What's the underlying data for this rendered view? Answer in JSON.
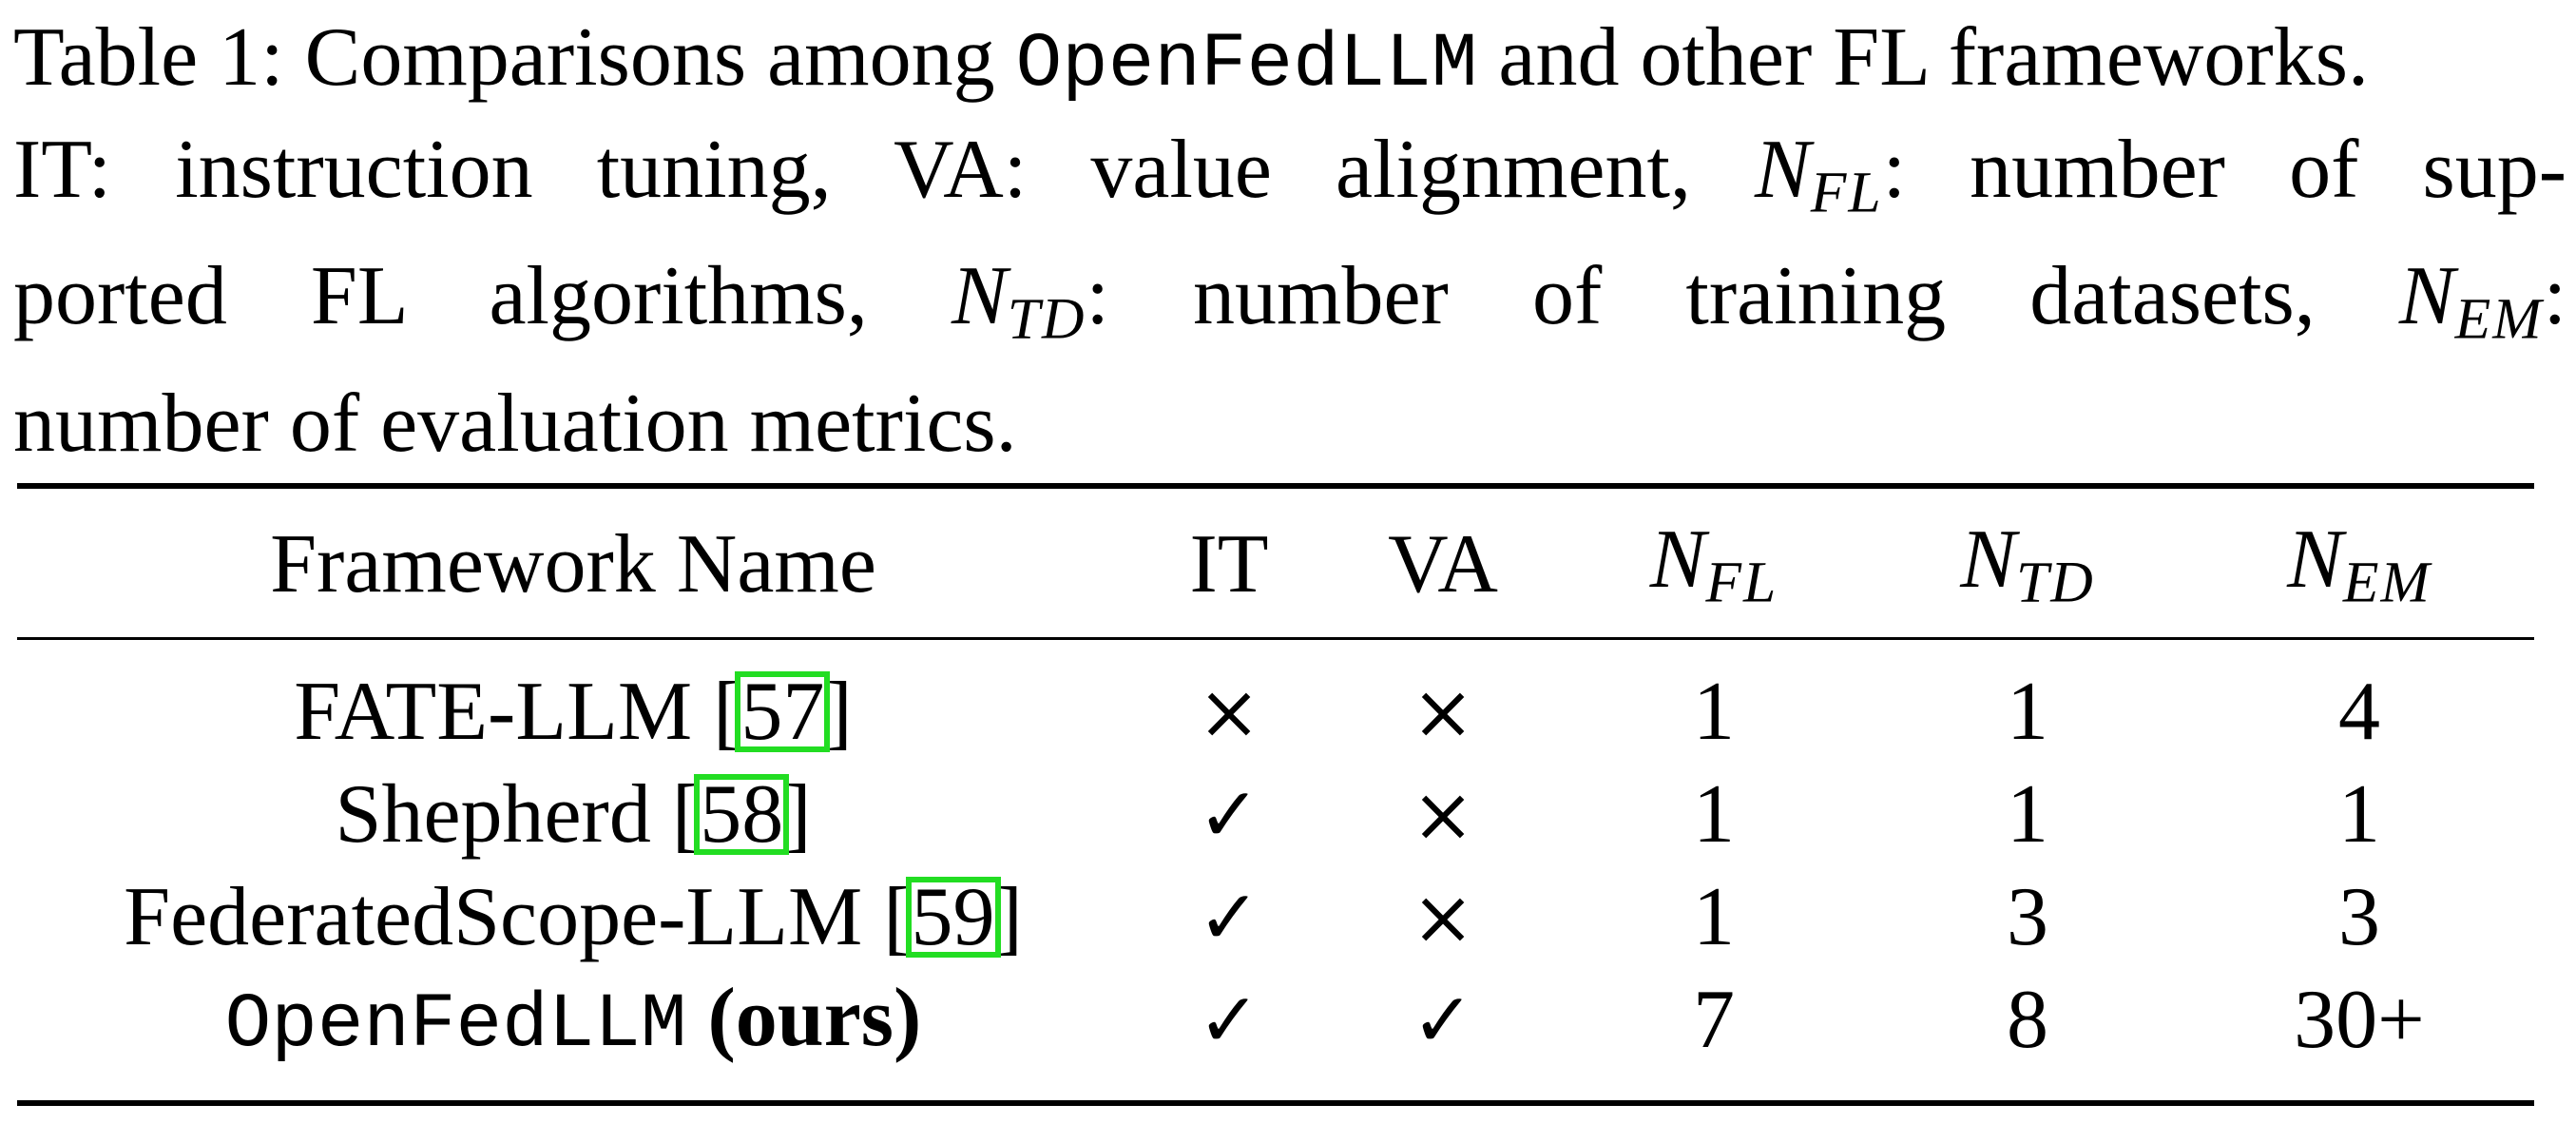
{
  "caption": {
    "table_label": "Table 1:",
    "text_1": "Comparisons among",
    "framework_ours_mono": "OpenFedLLM",
    "text_2": "and other FL frameworks.",
    "line2_a": "IT: instruction tuning, VA: value alignment,",
    "n_symbol": "N",
    "sub_fl": "FL",
    "line2_b": ": number of sup-",
    "line3_a": "ported FL algorithms,",
    "sub_td": "TD",
    "line3_b": ": number of training datasets,",
    "sub_em": "EM",
    "line3_c": ":",
    "line4": "number of evaluation metrics."
  },
  "table": {
    "headers": {
      "framework": "Framework Name",
      "it": "IT",
      "va": "VA",
      "n": "N",
      "sub_fl": "FL",
      "sub_td": "TD",
      "sub_em": "EM"
    },
    "rows": [
      {
        "name": "FATE-LLM",
        "cite": "57",
        "it": "×",
        "va": "×",
        "nfl": "1",
        "ntd": "1",
        "nem": "4"
      },
      {
        "name": "Shepherd",
        "cite": "58",
        "it": "✓",
        "va": "×",
        "nfl": "1",
        "ntd": "1",
        "nem": "1"
      },
      {
        "name": "FederatedScope-LLM",
        "cite": "59",
        "it": "✓",
        "va": "×",
        "nfl": "1",
        "ntd": "3",
        "nem": "3"
      },
      {
        "name_mono": "OpenFedLLM",
        "name_suffix": "(ours)",
        "it": "✓",
        "va": "✓",
        "nfl": "7",
        "ntd": "8",
        "nem": "30+"
      }
    ]
  },
  "colors": {
    "citation_box": "#22dd22",
    "text": "#000000"
  }
}
